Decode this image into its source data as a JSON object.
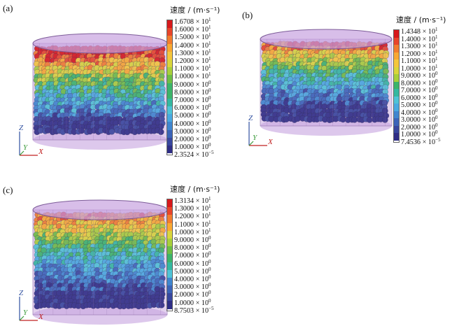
{
  "panels": [
    {
      "label": "(a)",
      "legend": {
        "title": "速度 / (m·s⁻¹)",
        "ticks": [
          {
            "mant": "1.6708 × 10",
            "exp": "1"
          },
          {
            "mant": "1.6000 × 10",
            "exp": "1"
          },
          {
            "mant": "1.5000 × 10",
            "exp": "1"
          },
          {
            "mant": "1.4000 × 10",
            "exp": "1"
          },
          {
            "mant": "1.3000 × 10",
            "exp": "1"
          },
          {
            "mant": "1.2000 × 10",
            "exp": "1"
          },
          {
            "mant": "1.1000 × 10",
            "exp": "1"
          },
          {
            "mant": "1.0000 × 10",
            "exp": "1"
          },
          {
            "mant": "9.0000 × 10",
            "exp": "0"
          },
          {
            "mant": "8.0000 × 10",
            "exp": "0"
          },
          {
            "mant": "7.0000 × 10",
            "exp": "0"
          },
          {
            "mant": "6.0000 × 10",
            "exp": "0"
          },
          {
            "mant": "5.0000 × 10",
            "exp": "0"
          },
          {
            "mant": "4.0000 × 10",
            "exp": "0"
          },
          {
            "mant": "3.0000 × 10",
            "exp": "0"
          },
          {
            "mant": "2.0000 × 10",
            "exp": "0"
          },
          {
            "mant": "1.0000 × 10",
            "exp": "0"
          },
          {
            "mant": "2.3524 × 10",
            "exp": "−5"
          }
        ]
      },
      "axes": {
        "z": "Z",
        "y": "Y",
        "x": "X"
      }
    },
    {
      "label": "(b)",
      "legend": {
        "title": "速度 / (m·s⁻¹)",
        "ticks": [
          {
            "mant": "1.4348 × 10",
            "exp": "1"
          },
          {
            "mant": "1.4000 × 10",
            "exp": "1"
          },
          {
            "mant": "1.3000 × 10",
            "exp": "1"
          },
          {
            "mant": "1.2000 × 10",
            "exp": "1"
          },
          {
            "mant": "1.1000 × 10",
            "exp": "1"
          },
          {
            "mant": "1.0000 × 10",
            "exp": "1"
          },
          {
            "mant": "9.0000 × 10",
            "exp": "0"
          },
          {
            "mant": "8.0000 × 10",
            "exp": "0"
          },
          {
            "mant": "7.0000 × 10",
            "exp": "0"
          },
          {
            "mant": "6.0000 × 10",
            "exp": "0"
          },
          {
            "mant": "5.0000 × 10",
            "exp": "0"
          },
          {
            "mant": "4.0000 × 10",
            "exp": "0"
          },
          {
            "mant": "3.0000 × 10",
            "exp": "0"
          },
          {
            "mant": "2.0000 × 10",
            "exp": "0"
          },
          {
            "mant": "1.0000 × 10",
            "exp": "0"
          },
          {
            "mant": "7.4536 × 10",
            "exp": "−5"
          }
        ]
      },
      "axes": {
        "z": "Z",
        "y": "Y",
        "x": "X"
      }
    },
    {
      "label": "(c)",
      "legend": {
        "title": "速度 / (m·s⁻¹)",
        "ticks": [
          {
            "mant": "1.3134 × 10",
            "exp": "1"
          },
          {
            "mant": "1.3000 × 10",
            "exp": "1"
          },
          {
            "mant": "1.2000 × 10",
            "exp": "1"
          },
          {
            "mant": "1.1000 × 10",
            "exp": "1"
          },
          {
            "mant": "1.0000 × 10",
            "exp": "1"
          },
          {
            "mant": "9.0000 × 10",
            "exp": "0"
          },
          {
            "mant": "8.0000 × 10",
            "exp": "0"
          },
          {
            "mant": "7.0000 × 10",
            "exp": "0"
          },
          {
            "mant": "6.0000 × 10",
            "exp": "0"
          },
          {
            "mant": "5.0000 × 10",
            "exp": "0"
          },
          {
            "mant": "4.0000 × 10",
            "exp": "0"
          },
          {
            "mant": "3.0000 × 10",
            "exp": "0"
          },
          {
            "mant": "2.0000 × 10",
            "exp": "0"
          },
          {
            "mant": "1.0000 × 10",
            "exp": "0"
          },
          {
            "mant": "8.7503 × 10",
            "exp": "−5"
          }
        ]
      },
      "axes": {
        "z": "Z",
        "y": "Y",
        "x": "X"
      }
    }
  ],
  "colormap": [
    "#d7191c",
    "#e8452a",
    "#f27c2e",
    "#f9a832",
    "#f4c63c",
    "#d9d53c",
    "#a8cf3b",
    "#6dbe45",
    "#3cb46a",
    "#35b8a0",
    "#4fc3d6",
    "#49a9e0",
    "#3f86cf",
    "#3b64b8",
    "#38479e",
    "#2f2e86"
  ],
  "container_color": "#c7a3e0"
}
